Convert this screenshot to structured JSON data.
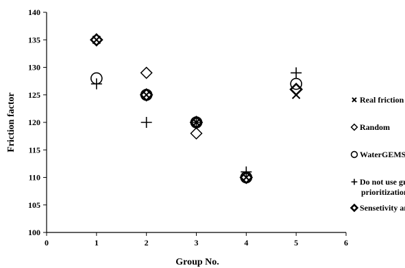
{
  "chart_data": {
    "type": "scatter",
    "title": "",
    "xlabel": "Group No.",
    "ylabel": "Friction factor",
    "xlim": [
      0,
      6
    ],
    "ylim": [
      100,
      140
    ],
    "xticks": [
      0,
      1,
      2,
      3,
      4,
      5,
      6
    ],
    "yticks": [
      100,
      105,
      110,
      115,
      120,
      125,
      130,
      135,
      140
    ],
    "grid": false,
    "legend_position": "right",
    "series": [
      {
        "name": "Real friction factor",
        "marker": "x-cross",
        "color": "#000000",
        "points": [
          [
            1,
            135
          ],
          [
            2,
            125
          ],
          [
            3,
            120
          ],
          [
            4,
            110
          ],
          [
            5,
            125
          ]
        ]
      },
      {
        "name": "Random",
        "marker": "diamond",
        "color": "#000000",
        "points": [
          [
            1,
            135
          ],
          [
            2,
            129
          ],
          [
            3,
            118
          ],
          [
            4,
            110
          ],
          [
            5,
            126
          ]
        ]
      },
      {
        "name": "WaterGEMS",
        "marker": "circle",
        "color": "#000000",
        "points": [
          [
            1,
            128
          ],
          [
            2,
            125
          ],
          [
            3,
            120
          ],
          [
            4,
            110
          ],
          [
            5,
            127
          ]
        ]
      },
      {
        "name": "Do not use group prioritization",
        "marker": "plus",
        "color": "#000000",
        "points": [
          [
            1,
            127
          ],
          [
            2,
            120
          ],
          [
            3,
            120
          ],
          [
            4,
            111
          ],
          [
            5,
            129
          ]
        ]
      },
      {
        "name": "Sensetivity analysis",
        "marker": "bold-diamond",
        "color": "#000000",
        "points": [
          [
            1,
            135
          ],
          [
            2,
            125
          ],
          [
            3,
            120
          ],
          [
            4,
            110
          ],
          [
            5,
            126
          ]
        ]
      }
    ],
    "legend": [
      {
        "lines": [
          "Real friction factor"
        ]
      },
      {
        "lines": [
          "Random"
        ]
      },
      {
        "lines": [
          "WaterGEMS"
        ]
      },
      {
        "lines": [
          "Do not use group",
          "prioritization"
        ]
      },
      {
        "lines": [
          "Sensetivity analysis"
        ]
      }
    ]
  }
}
